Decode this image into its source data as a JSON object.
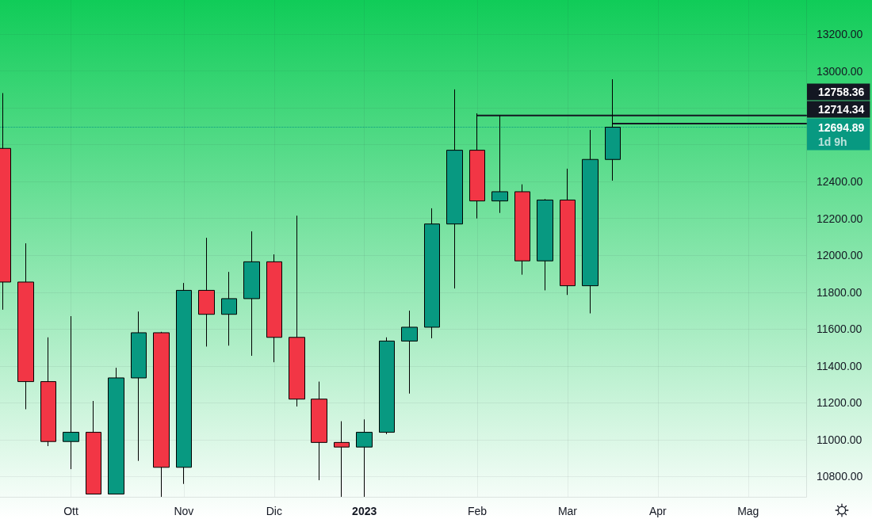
{
  "chart_data": {
    "type": "candlestick",
    "x": [
      "2022-09-12",
      "2022-09-19",
      "2022-09-26",
      "2022-10-03",
      "2022-10-10",
      "2022-10-17",
      "2022-10-24",
      "2022-10-31",
      "2022-11-07",
      "2022-11-14",
      "2022-11-21",
      "2022-11-28",
      "2022-12-05",
      "2022-12-12",
      "2022-12-19",
      "2022-12-26",
      "2023-01-02",
      "2023-01-09",
      "2023-01-16",
      "2023-01-23",
      "2023-01-30",
      "2023-02-06",
      "2023-02-13",
      "2023-02-20",
      "2023-02-27",
      "2023-03-06",
      "2023-03-13",
      "2023-03-20"
    ],
    "ohlc": [
      [
        12580,
        12880,
        11705,
        11855
      ],
      [
        11855,
        12065,
        11165,
        11315
      ],
      [
        11315,
        11555,
        10965,
        10990
      ],
      [
        10990,
        11670,
        10840,
        11040
      ],
      [
        11040,
        11210,
        10705,
        10705
      ],
      [
        10705,
        11390,
        10705,
        11335
      ],
      [
        11335,
        11695,
        10885,
        11580
      ],
      [
        11580,
        11585,
        10690,
        10850
      ],
      [
        10850,
        11850,
        10760,
        11810
      ],
      [
        11810,
        12095,
        11505,
        11680
      ],
      [
        11680,
        11910,
        11510,
        11765
      ],
      [
        11765,
        12130,
        11455,
        11965
      ],
      [
        11965,
        12005,
        11420,
        11555
      ],
      [
        11555,
        12215,
        11180,
        11220
      ],
      [
        11220,
        11315,
        10780,
        10985
      ],
      [
        10985,
        11100,
        10690,
        10960
      ],
      [
        10960,
        11110,
        10690,
        11040
      ],
      [
        11040,
        11555,
        11030,
        11535
      ],
      [
        11535,
        11700,
        11250,
        11610
      ],
      [
        11610,
        12255,
        11550,
        12170
      ],
      [
        12170,
        12900,
        11820,
        12570
      ],
      [
        12570,
        12770,
        12200,
        12295
      ],
      [
        12295,
        12758,
        12230,
        12345
      ],
      [
        12345,
        12385,
        11895,
        11970
      ],
      [
        11970,
        12305,
        11810,
        12300
      ],
      [
        12300,
        12470,
        11785,
        11835
      ],
      [
        11835,
        12680,
        11685,
        12520
      ],
      [
        12520,
        12955,
        12405,
        12694.89
      ]
    ],
    "colors": [
      "#f23645",
      "#f23645",
      "#f23645",
      "#089981",
      "#f23645",
      "#089981",
      "#089981",
      "#f23645",
      "#089981",
      "#f23645",
      "#089981",
      "#089981",
      "#f23645",
      "#f23645",
      "#f23645",
      "#f23645",
      "#089981",
      "#089981",
      "#089981",
      "#089981",
      "#089981",
      "#f23645",
      "#089981",
      "#f23645",
      "#089981",
      "#f23645",
      "#089981",
      "#089981"
    ],
    "series": [
      {
        "type": "line",
        "x": [
          "2023-02-06",
          "2023-05-19"
        ],
        "values": [
          12758.36,
          12758.36
        ],
        "color": "#131722",
        "value_labels": [
          null,
          "12758.36"
        ]
      },
      {
        "type": "line",
        "x": [
          "2023-03-20",
          "2023-05-19"
        ],
        "values": [
          12714.34,
          12714.34
        ],
        "color": "#131722",
        "value_labels": [
          null,
          "12714.34"
        ]
      }
    ],
    "ref_lines": [
      {
        "axis": "y",
        "value": 12694.89,
        "label": "12694.89\n1d 9h",
        "color": "#089981",
        "line_style": "dotted"
      }
    ],
    "xlim": [
      "2022-09-11",
      "2023-05-19"
    ],
    "xticks": [
      {
        "value": "2022-10-03",
        "label": "Ott"
      },
      {
        "value": "2022-11-07",
        "label": "Nov"
      },
      {
        "value": "2022-12-05",
        "label": "Dic"
      },
      {
        "value": "2023-01-02",
        "label": "2023"
      },
      {
        "value": "2023-02-06",
        "label": "Feb"
      },
      {
        "value": "2023-03-06",
        "label": "Mar"
      },
      {
        "value": "2023-04-03",
        "label": "Apr"
      },
      {
        "value": "2023-05-01",
        "label": "Mag"
      }
    ],
    "ylim": [
      10690,
      13385
    ],
    "yticks": [
      {
        "value": 10800,
        "label": "10800.00"
      },
      {
        "value": 11000,
        "label": "11000.00"
      },
      {
        "value": 11200,
        "label": "11200.00"
      },
      {
        "value": 11400,
        "label": "11400.00"
      },
      {
        "value": 11600,
        "label": "11600.00"
      },
      {
        "value": 11800,
        "label": "11800.00"
      },
      {
        "value": 12000,
        "label": "12000.00"
      },
      {
        "value": 12200,
        "label": "12200.00"
      },
      {
        "value": 12400,
        "label": "12400.00"
      },
      {
        "value": 12600,
        "label": null
      },
      {
        "value": 12800,
        "label": null
      },
      {
        "value": 13000,
        "label": "13000.00"
      },
      {
        "value": 13200,
        "label": "13200.00"
      }
    ],
    "grid": true,
    "marker": "none"
  }
}
